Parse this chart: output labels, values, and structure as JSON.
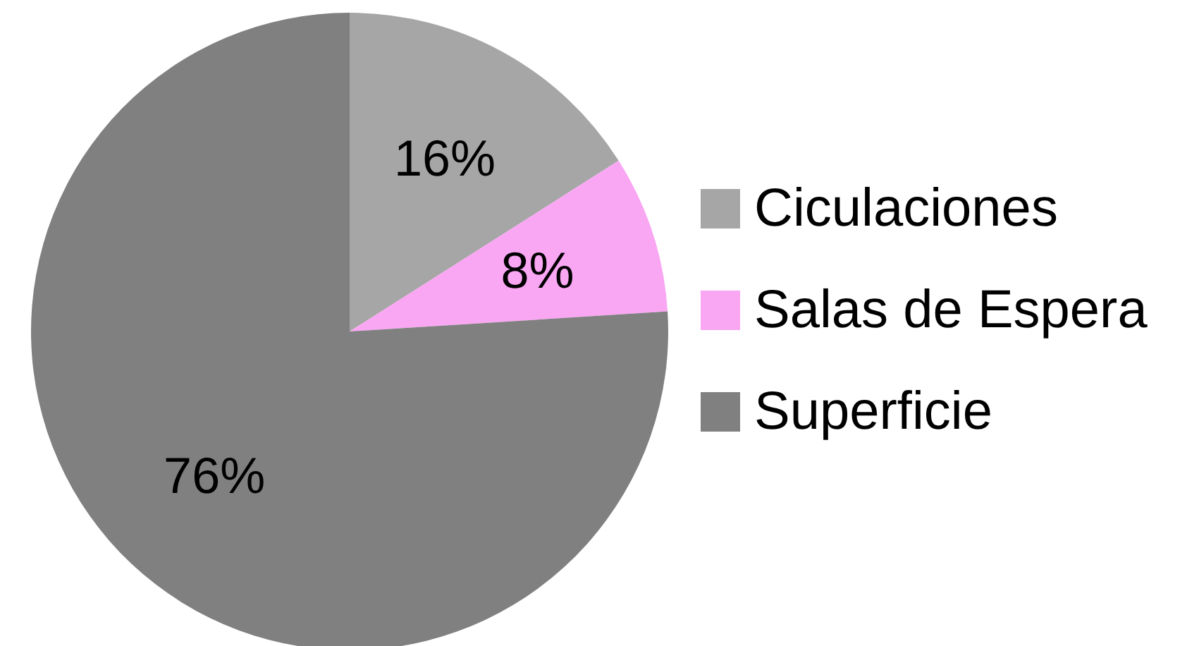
{
  "chart_data": {
    "type": "pie",
    "categories": [
      "Ciculaciones",
      "Salas de Espera",
      "Superficie"
    ],
    "values": [
      16,
      8,
      76
    ],
    "colors": [
      "#a6a6a6",
      "#f9a6f3",
      "#808080"
    ],
    "value_labels": [
      "16%",
      "8%",
      "76%"
    ],
    "legend": "right"
  }
}
